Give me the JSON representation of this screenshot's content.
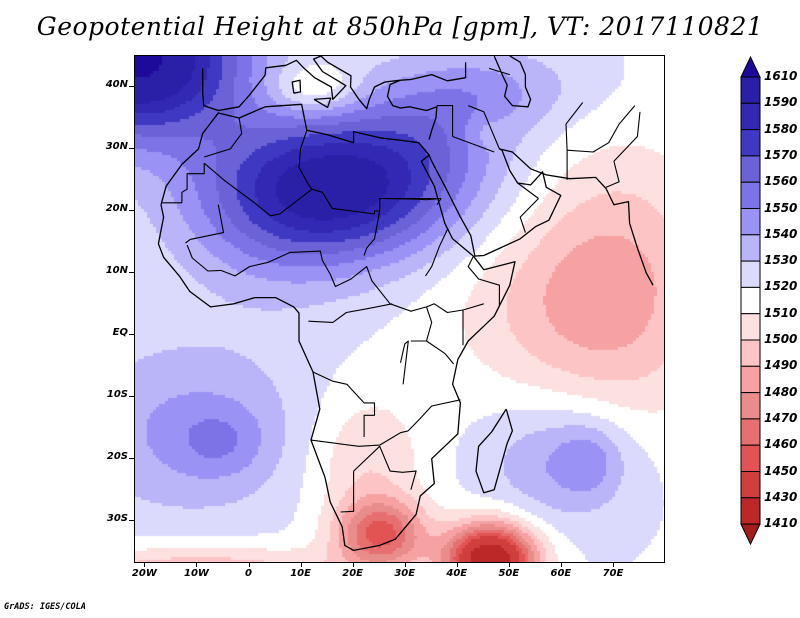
{
  "title": "Geopotential Height at 850hPa [gpm], VT: 2017110821",
  "footer": "GrADS: IGES/COLA",
  "map": {
    "projection": "latlon",
    "lon_range": [
      -22,
      80
    ],
    "lat_range": [
      -37,
      45
    ],
    "variable": "Geopotential Height",
    "level": "850hPa",
    "units": "gpm",
    "valid_time": "2017110821",
    "region": "Africa, Middle East, Indian Ocean"
  },
  "axes": {
    "y_ticks": [
      {
        "label": "40N",
        "lat": 40
      },
      {
        "label": "30N",
        "lat": 30
      },
      {
        "label": "20N",
        "lat": 20
      },
      {
        "label": "10N",
        "lat": 10
      },
      {
        "label": "EQ",
        "lat": 0
      },
      {
        "label": "10S",
        "lat": -10
      },
      {
        "label": "20S",
        "lat": -20
      },
      {
        "label": "30S",
        "lat": -30
      }
    ],
    "x_ticks": [
      {
        "label": "20W",
        "lon": -20
      },
      {
        "label": "10W",
        "lon": -10
      },
      {
        "label": "0",
        "lon": 0
      },
      {
        "label": "10E",
        "lon": 10
      },
      {
        "label": "20E",
        "lon": 20
      },
      {
        "label": "30E",
        "lon": 30
      },
      {
        "label": "40E",
        "lon": 40
      },
      {
        "label": "50E",
        "lon": 50
      },
      {
        "label": "60E",
        "lon": 60
      },
      {
        "label": "70E",
        "lon": 70
      }
    ]
  },
  "colorbar": {
    "labels": [
      "1610",
      "1590",
      "1580",
      "1570",
      "1560",
      "1550",
      "1540",
      "1530",
      "1520",
      "1510",
      "1500",
      "1490",
      "1480",
      "1470",
      "1460",
      "1450",
      "1430",
      "1410"
    ],
    "levels": [
      1410,
      1430,
      1450,
      1460,
      1470,
      1480,
      1490,
      1500,
      1510,
      1520,
      1530,
      1540,
      1550,
      1560,
      1570,
      1580,
      1590,
      1610
    ],
    "colors_top_to_bottom": [
      "#1e0a9a",
      "#2a20a8",
      "#3328b4",
      "#3e38c2",
      "#6a62d6",
      "#7c74e6",
      "#9a92f4",
      "#bab4f8",
      "#dcdafc",
      "#ffffff",
      "#fde0e0",
      "#fcc4c4",
      "#f6a2a2",
      "#e88c8c",
      "#e67070",
      "#e25454",
      "#d03e3e",
      "#bc2828",
      "#a21e1e"
    ],
    "extend": "both"
  },
  "features": {
    "highs": [
      {
        "name": "North Atlantic / Iberia high",
        "value": "> 1610"
      },
      {
        "name": "Sahara / Libya high",
        "value": "1580-1590"
      },
      {
        "name": "South Atlantic subtropical",
        "value": "1540-1550"
      },
      {
        "name": "South Indian Ocean",
        "value": "1540-1550"
      }
    ],
    "lows": [
      {
        "name": "Southwest Indian Ocean low (south of Madagascar)",
        "value": "< 1410"
      },
      {
        "name": "South Africa thermal low",
        "value": "1450-1460"
      },
      {
        "name": "Arabian Sea / India",
        "value": "1480-1490"
      }
    ]
  }
}
